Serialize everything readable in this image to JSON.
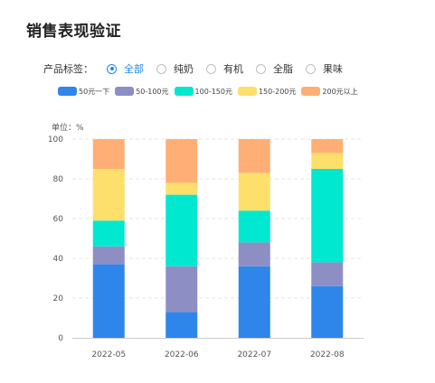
{
  "title": "销售表现验证",
  "filter": {
    "label": "产品标签：",
    "options": [
      {
        "label": "全部",
        "selected": true
      },
      {
        "label": "纯奶",
        "selected": false
      },
      {
        "label": "有机",
        "selected": false
      },
      {
        "label": "全脂",
        "selected": false
      },
      {
        "label": "果味",
        "selected": false
      }
    ]
  },
  "colors": {
    "accent": "#1f87e8",
    "series": [
      "#2f86ea",
      "#8d8fc4",
      "#00e8cf",
      "#fde06b",
      "#ffaf75"
    ]
  },
  "chart_data": {
    "type": "bar",
    "stacked": true,
    "unit_label": "单位：%",
    "categories": [
      "2022-05",
      "2022-06",
      "2022-07",
      "2022-08"
    ],
    "ylim": [
      0,
      100
    ],
    "yticks": [
      0,
      20,
      40,
      60,
      80,
      100
    ],
    "grid": true,
    "legend_position": "top",
    "series": [
      {
        "name": "50元一下",
        "color": "#2f86ea",
        "values": [
          37,
          13,
          36,
          26
        ]
      },
      {
        "name": "50-100元",
        "color": "#8d8fc4",
        "values": [
          9,
          23,
          12,
          12
        ]
      },
      {
        "name": "100-150元",
        "color": "#00e8cf",
        "values": [
          13,
          36,
          16,
          47
        ]
      },
      {
        "name": "150-200元",
        "color": "#fde06b",
        "values": [
          26,
          6,
          19,
          8
        ]
      },
      {
        "name": "200元以上",
        "color": "#ffaf75",
        "values": [
          15,
          22,
          17,
          7
        ]
      }
    ]
  }
}
